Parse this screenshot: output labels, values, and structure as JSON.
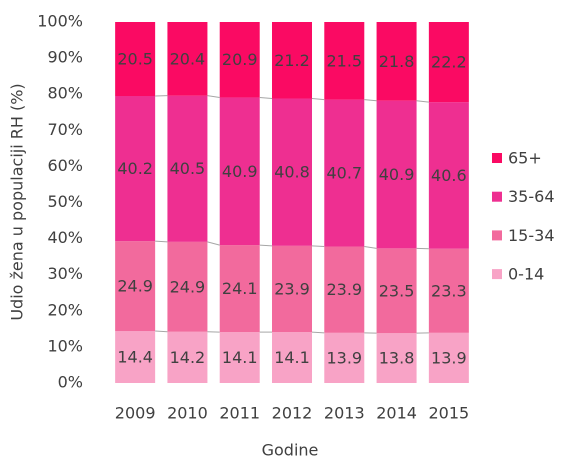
{
  "chart_data": {
    "type": "stacked_bar",
    "categories": [
      "2009",
      "2010",
      "2011",
      "2012",
      "2013",
      "2014",
      "2015"
    ],
    "series": [
      {
        "name": "0-14",
        "color": "#f8a3c6",
        "values": [
          14.4,
          14.2,
          14.1,
          14.1,
          13.9,
          13.8,
          13.9
        ]
      },
      {
        "name": "15-34",
        "color": "#f26a9d",
        "values": [
          24.9,
          24.9,
          24.1,
          23.9,
          23.9,
          23.5,
          23.3
        ]
      },
      {
        "name": "35-64",
        "color": "#ee2f91",
        "values": [
          40.2,
          40.5,
          40.9,
          40.8,
          40.7,
          40.9,
          40.6
        ]
      },
      {
        "name": "65+",
        "color": "#fa0a63",
        "values": [
          20.5,
          20.4,
          20.9,
          21.2,
          21.5,
          21.8,
          22.2
        ]
      }
    ],
    "x_label": "Godine",
    "y_label": "Udio žena u populaciji RH (%)",
    "ylim": [
      0,
      100
    ],
    "yticks": [
      {
        "value": 0,
        "label": "0%"
      },
      {
        "value": 10,
        "label": "10%"
      },
      {
        "value": 20,
        "label": "20%"
      },
      {
        "value": 30,
        "label": "30%"
      },
      {
        "value": 40,
        "label": "40%"
      },
      {
        "value": 50,
        "label": "50%"
      },
      {
        "value": 60,
        "label": "60%"
      },
      {
        "value": 70,
        "label": "70%"
      },
      {
        "value": 80,
        "label": "80%"
      },
      {
        "value": 90,
        "label": "90%"
      },
      {
        "value": 100,
        "label": "100%"
      }
    ],
    "legend": "right"
  }
}
